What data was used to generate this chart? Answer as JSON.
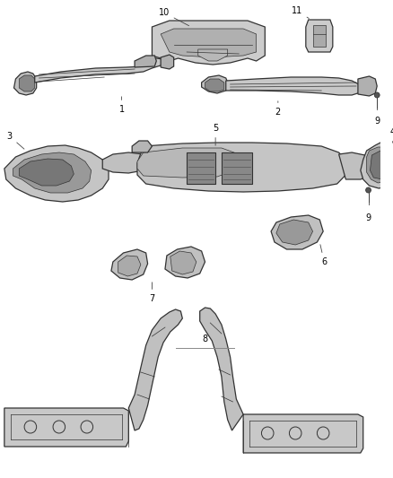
{
  "bg_color": "#ffffff",
  "line_color": "#333333",
  "part_fill": "#d8d8d8",
  "part_fill_dark": "#aaaaaa",
  "part_fill_darker": "#888888",
  "label_color": "#000000",
  "figsize": [
    4.38,
    5.33
  ],
  "dpi": 100,
  "lw_main": 0.9,
  "lw_inner": 0.5,
  "lw_leader": 0.6,
  "label_fontsize": 7
}
